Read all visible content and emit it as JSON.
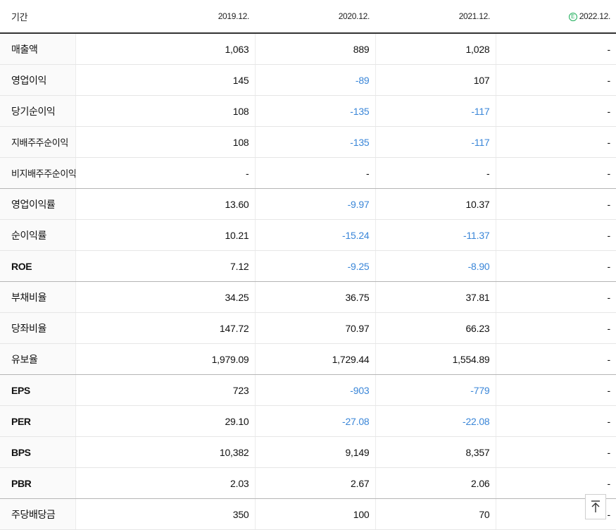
{
  "table": {
    "period_label": "기간",
    "columns": [
      {
        "label": "2019.12.",
        "estimate": false
      },
      {
        "label": "2020.12.",
        "estimate": false
      },
      {
        "label": "2021.12.",
        "estimate": false
      },
      {
        "label": "2022.12.",
        "estimate": true,
        "badge": "E"
      }
    ],
    "rows": [
      {
        "label": "매출액",
        "values": [
          "1,063",
          "889",
          "1,028",
          "-"
        ]
      },
      {
        "label": "영업이익",
        "values": [
          "145",
          "-89",
          "107",
          "-"
        ]
      },
      {
        "label": "당기순이익",
        "values": [
          "108",
          "-135",
          "-117",
          "-"
        ]
      },
      {
        "label": "지배주주순이익",
        "values": [
          "108",
          "-135",
          "-117",
          "-"
        ]
      },
      {
        "label": "비지배주주순이익",
        "values": [
          "-",
          "-",
          "-",
          "-"
        ]
      },
      {
        "label": "영업이익률",
        "values": [
          "13.60",
          "-9.97",
          "10.37",
          "-"
        ]
      },
      {
        "label": "순이익률",
        "values": [
          "10.21",
          "-15.24",
          "-11.37",
          "-"
        ]
      },
      {
        "label": "ROE",
        "values": [
          "7.12",
          "-9.25",
          "-8.90",
          "-"
        ]
      },
      {
        "label": "부채비율",
        "values": [
          "34.25",
          "36.75",
          "37.81",
          "-"
        ]
      },
      {
        "label": "당좌비율",
        "values": [
          "147.72",
          "70.97",
          "66.23",
          "-"
        ]
      },
      {
        "label": "유보율",
        "values": [
          "1,979.09",
          "1,729.44",
          "1,554.89",
          "-"
        ]
      },
      {
        "label": "EPS",
        "values": [
          "723",
          "-903",
          "-779",
          "-"
        ]
      },
      {
        "label": "PER",
        "values": [
          "29.10",
          "-27.08",
          "-22.08",
          "-"
        ]
      },
      {
        "label": "BPS",
        "values": [
          "10,382",
          "9,149",
          "8,357",
          "-"
        ]
      },
      {
        "label": "PBR",
        "values": [
          "2.03",
          "2.67",
          "2.06",
          "-"
        ]
      },
      {
        "label": "주당배당금",
        "values": [
          "350",
          "100",
          "70",
          "-"
        ]
      }
    ]
  },
  "colors": {
    "negative": "#3a86d8",
    "estimate_badge": "#1fae5b"
  },
  "scroll_top_button": {
    "icon": "arrow-up-to-top-icon"
  }
}
